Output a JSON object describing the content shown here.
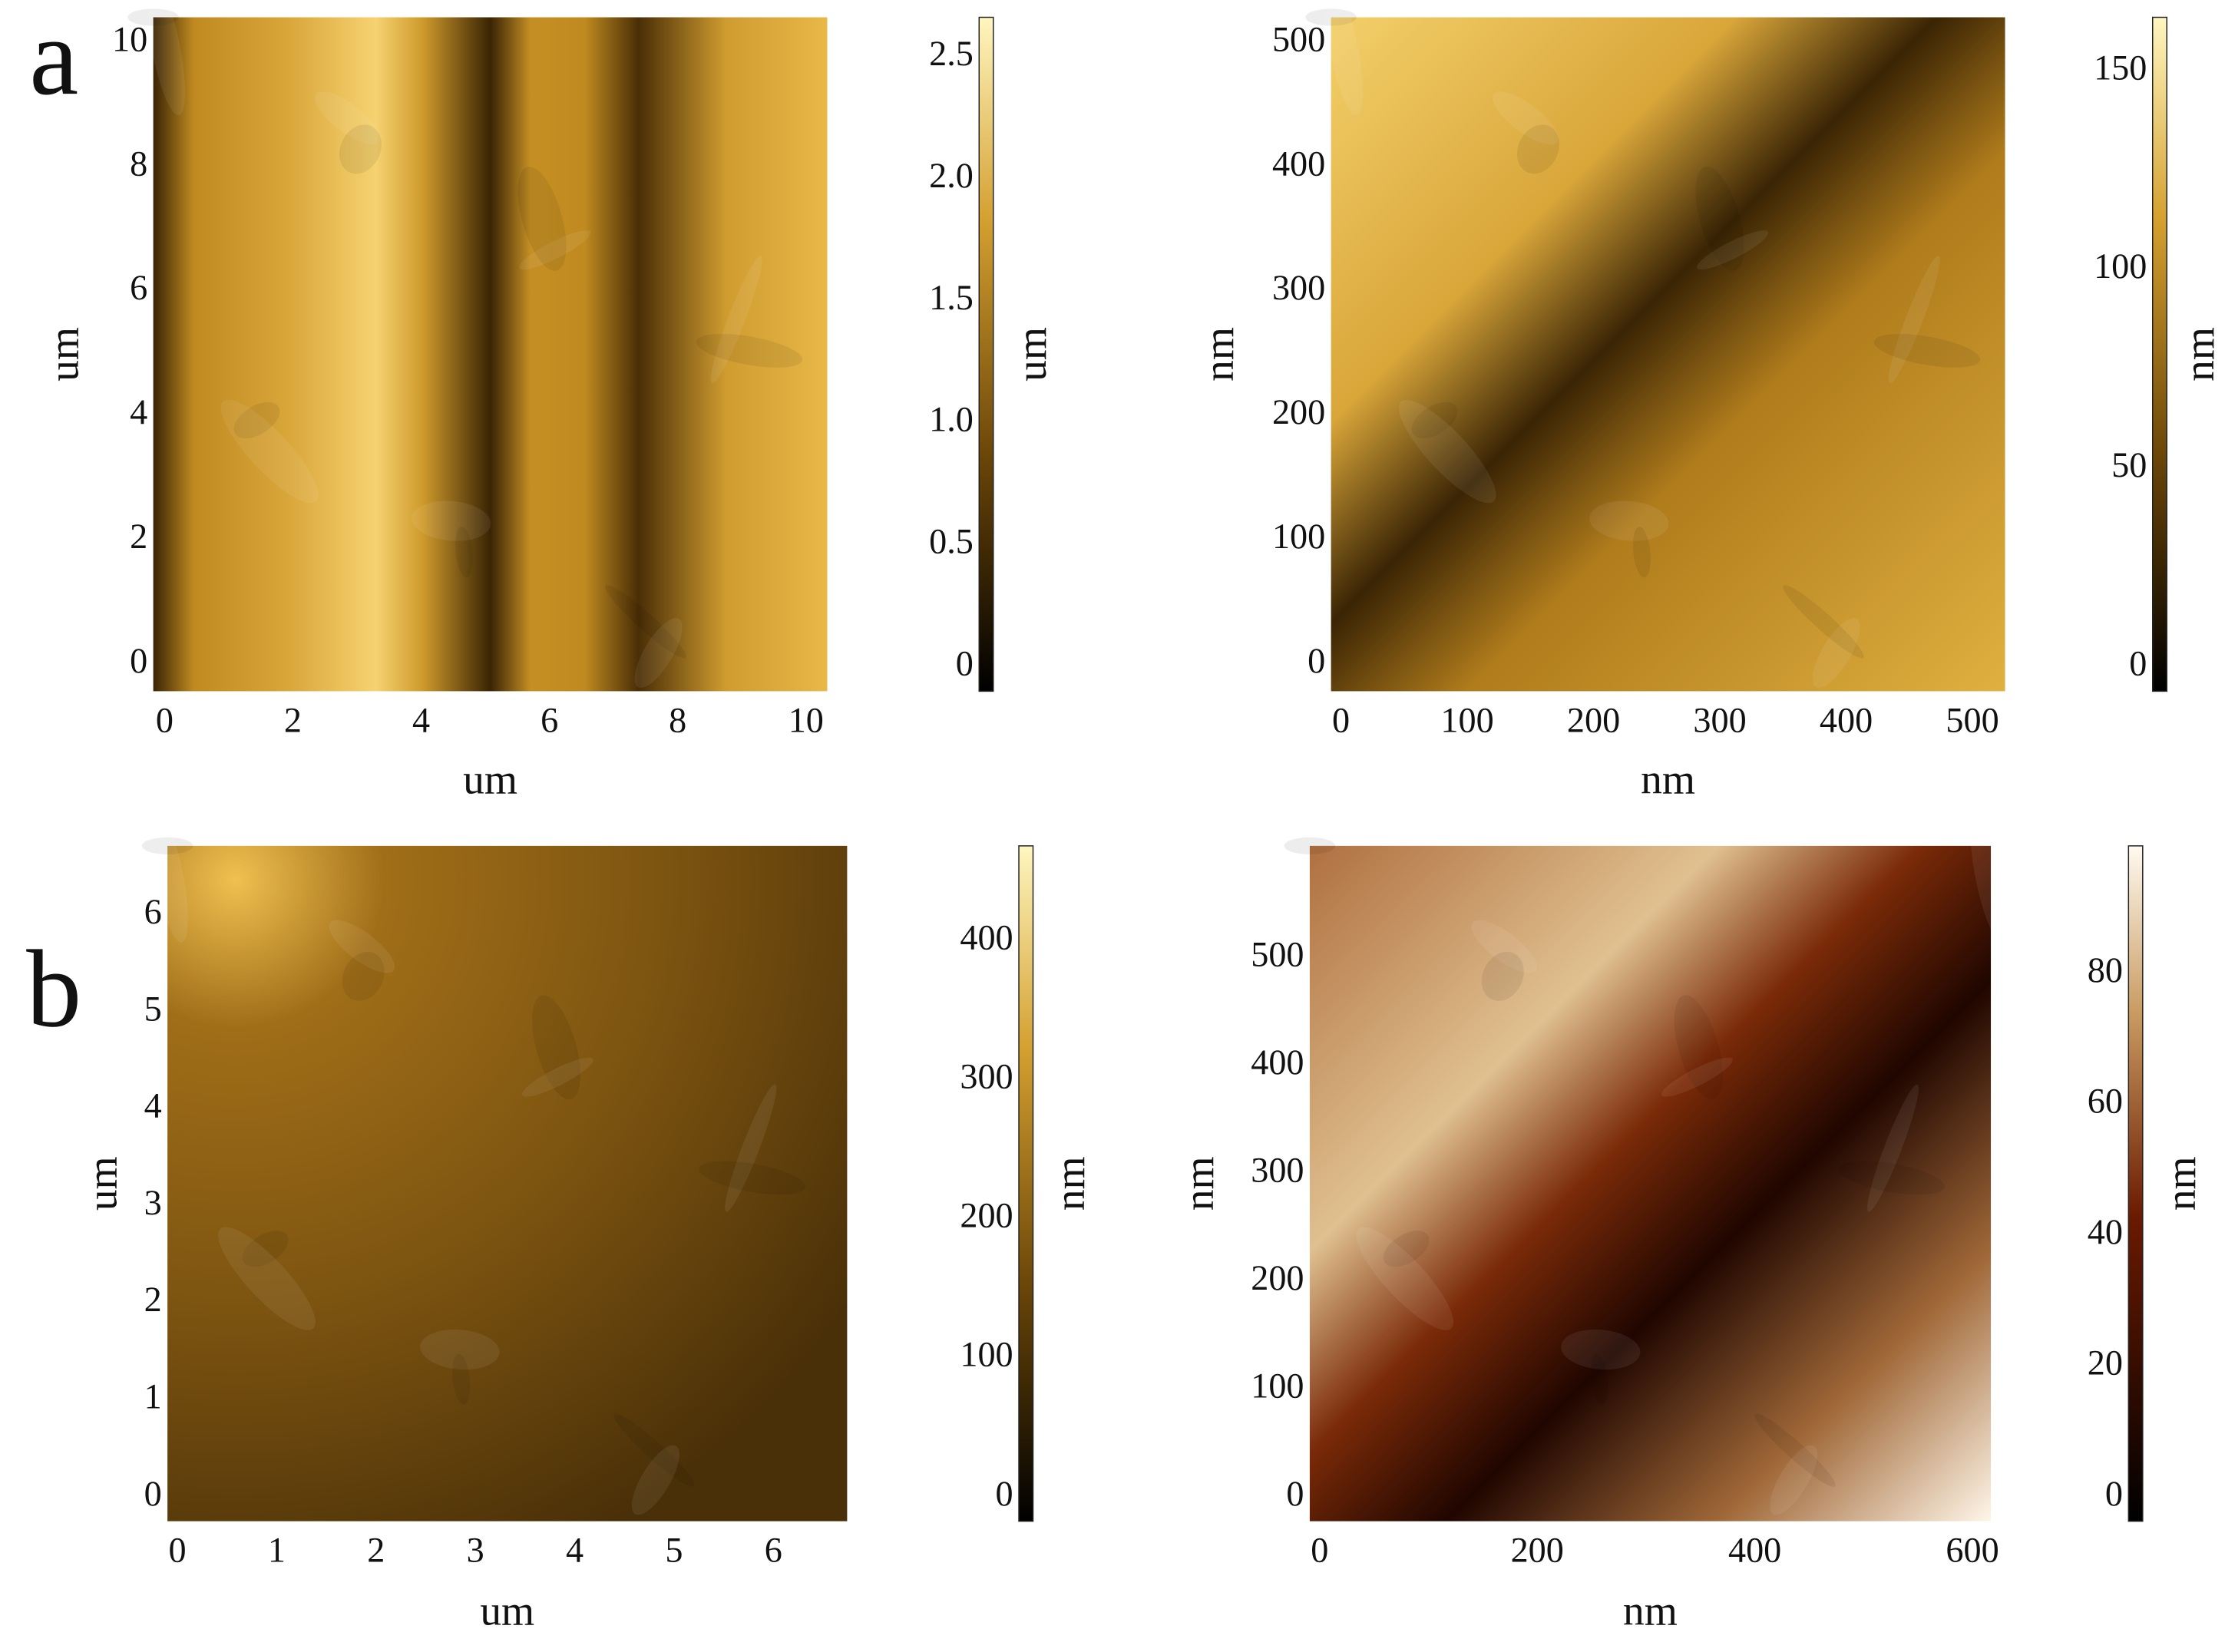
{
  "rows": [
    {
      "label": "a",
      "panels": [
        {
          "x_ticks": [
            "0",
            "2",
            "4",
            "6",
            "8",
            "10"
          ],
          "y_ticks": [
            "0",
            "2",
            "4",
            "6",
            "8",
            "10"
          ],
          "x_label": "um",
          "y_label": "um",
          "colorbar_ticks": [
            "0",
            "0.5",
            "1.0",
            "1.5",
            "2.0",
            "2.5"
          ],
          "colorbar_label": "um"
        },
        {
          "x_ticks": [
            "0",
            "100",
            "200",
            "300",
            "400",
            "500"
          ],
          "y_ticks": [
            "0",
            "100",
            "200",
            "300",
            "400",
            "500"
          ],
          "x_label": "nm",
          "y_label": "nm",
          "colorbar_ticks": [
            "0",
            "50",
            "100",
            "150"
          ],
          "colorbar_label": "nm"
        }
      ]
    },
    {
      "label": "b",
      "panels": [
        {
          "x_ticks": [
            "0",
            "1",
            "2",
            "3",
            "4",
            "5",
            "6"
          ],
          "y_ticks": [
            "0",
            "1",
            "2",
            "3",
            "4",
            "5",
            "6"
          ],
          "x_label": "um",
          "y_label": "um",
          "colorbar_ticks": [
            "0",
            "100",
            "200",
            "300",
            "400"
          ],
          "colorbar_label": "nm"
        },
        {
          "x_ticks": [
            "0",
            "200",
            "400",
            "600"
          ],
          "y_ticks": [
            "0",
            "100",
            "200",
            "300",
            "400",
            "500"
          ],
          "x_label": "nm",
          "y_label": "nm",
          "colorbar_ticks": [
            "0",
            "20",
            "40",
            "60",
            "80"
          ],
          "colorbar_label": "nm"
        }
      ]
    }
  ]
}
